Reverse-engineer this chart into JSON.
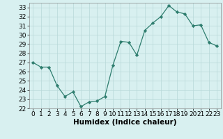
{
  "x": [
    0,
    1,
    2,
    3,
    4,
    5,
    6,
    7,
    8,
    9,
    10,
    11,
    12,
    13,
    14,
    15,
    16,
    17,
    18,
    19,
    20,
    21,
    22,
    23
  ],
  "y": [
    27.0,
    26.5,
    26.5,
    24.5,
    23.3,
    23.8,
    22.2,
    22.7,
    22.8,
    23.3,
    26.7,
    29.3,
    29.2,
    27.8,
    30.5,
    31.3,
    32.0,
    33.2,
    32.5,
    32.3,
    31.0,
    31.1,
    29.2,
    28.8
  ],
  "xlabel": "Humidex (Indice chaleur)",
  "ylim": [
    22,
    33.5
  ],
  "yticks": [
    22,
    23,
    24,
    25,
    26,
    27,
    28,
    29,
    30,
    31,
    32,
    33
  ],
  "xticks": [
    0,
    1,
    2,
    3,
    4,
    5,
    6,
    7,
    8,
    9,
    10,
    11,
    12,
    13,
    14,
    15,
    16,
    17,
    18,
    19,
    20,
    21,
    22,
    23
  ],
  "line_color": "#2e7d6e",
  "marker_color": "#2e7d6e",
  "bg_color": "#d8f0f0",
  "grid_color": "#b8d8d8",
  "axis_label_fontsize": 7.5,
  "tick_fontsize": 6.5
}
